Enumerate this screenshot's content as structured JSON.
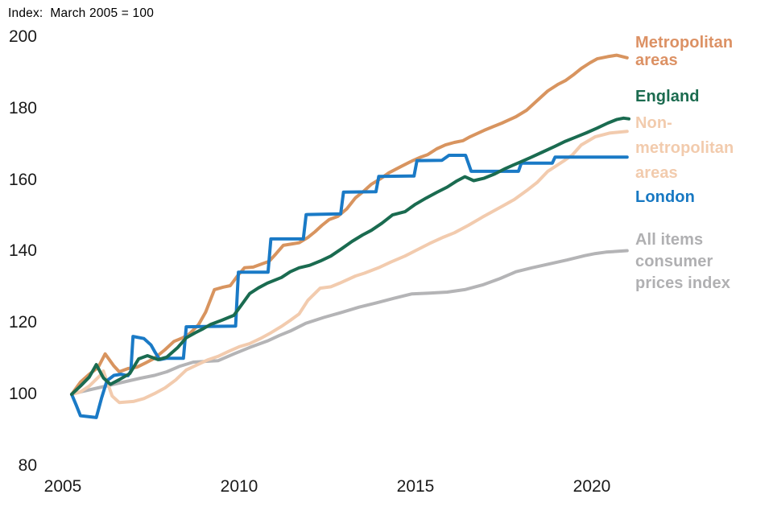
{
  "chart_data": {
    "type": "line",
    "title": "Index:  March 2005 = 100",
    "x_axis": {
      "ticks": [
        {
          "label": "2005",
          "value": 2005
        },
        {
          "label": "2010",
          "value": 2010
        },
        {
          "label": "2015",
          "value": 2015
        },
        {
          "label": "2020",
          "value": 2020
        }
      ]
    },
    "y_axis": {
      "ticks": [
        {
          "label": "200",
          "value": 200
        },
        {
          "label": "180",
          "value": 180
        },
        {
          "label": "160",
          "value": 160
        },
        {
          "label": "140",
          "value": 140
        },
        {
          "label": "120",
          "value": 120
        },
        {
          "label": "100",
          "value": 100
        },
        {
          "label": "80",
          "value": 80
        }
      ],
      "range": [
        80,
        205
      ]
    },
    "x_range": [
      2005,
      2021.5
    ],
    "grid": false,
    "legend_position": "right",
    "series": [
      {
        "name": "All items consumer prices index",
        "slug": "cpi",
        "color": "#b4b4b6",
        "label_color": "#b0b0b2",
        "legend_lines": [
          "All items",
          "consumer",
          "prices index"
        ],
        "points": [
          [
            2005.25,
            100
          ],
          [
            2005.6,
            100.9
          ],
          [
            2006.0,
            101.8
          ],
          [
            2006.4,
            102.7
          ],
          [
            2006.8,
            103.6
          ],
          [
            2007.2,
            104.5
          ],
          [
            2007.6,
            105.3
          ],
          [
            2007.95,
            106.3
          ],
          [
            2008.3,
            107.8
          ],
          [
            2008.7,
            109.0
          ],
          [
            2009.0,
            109.2
          ],
          [
            2009.4,
            109.4
          ],
          [
            2009.85,
            111.3
          ],
          [
            2010.3,
            113.1
          ],
          [
            2010.8,
            114.9
          ],
          [
            2011.15,
            116.5
          ],
          [
            2011.45,
            117.7
          ],
          [
            2011.9,
            119.9
          ],
          [
            2012.4,
            121.5
          ],
          [
            2012.9,
            122.9
          ],
          [
            2013.4,
            124.4
          ],
          [
            2013.9,
            125.6
          ],
          [
            2014.4,
            126.9
          ],
          [
            2014.9,
            128.1
          ],
          [
            2015.4,
            128.3
          ],
          [
            2015.9,
            128.6
          ],
          [
            2016.4,
            129.3
          ],
          [
            2016.9,
            130.6
          ],
          [
            2017.4,
            132.4
          ],
          [
            2017.85,
            134.3
          ],
          [
            2018.3,
            135.4
          ],
          [
            2018.8,
            136.5
          ],
          [
            2019.3,
            137.6
          ],
          [
            2019.8,
            138.8
          ],
          [
            2020.1,
            139.4
          ],
          [
            2020.4,
            139.8
          ],
          [
            2020.7,
            140.0
          ],
          [
            2021.0,
            140.2
          ]
        ]
      },
      {
        "name": "Non-metropolitan areas",
        "slug": "non-metropolitan-areas",
        "color": "#f2cbae",
        "label_color": "#f2cbad",
        "legend_lines": [
          "Non-",
          "metropolitan",
          "areas"
        ],
        "points": [
          [
            2005.25,
            100
          ],
          [
            2005.5,
            100.7
          ],
          [
            2005.75,
            102.3
          ],
          [
            2006.05,
            105.2
          ],
          [
            2006.15,
            106.5
          ],
          [
            2006.4,
            99.5
          ],
          [
            2006.6,
            97.7
          ],
          [
            2007.0,
            98.0
          ],
          [
            2007.3,
            98.8
          ],
          [
            2007.6,
            100.2
          ],
          [
            2007.9,
            101.8
          ],
          [
            2008.2,
            104.0
          ],
          [
            2008.5,
            106.8
          ],
          [
            2008.8,
            108.2
          ],
          [
            2009.1,
            109.6
          ],
          [
            2009.4,
            110.6
          ],
          [
            2009.7,
            112.0
          ],
          [
            2010.0,
            113.3
          ],
          [
            2010.3,
            114.2
          ],
          [
            2010.6,
            115.6
          ],
          [
            2010.9,
            117.2
          ],
          [
            2011.2,
            119.0
          ],
          [
            2011.45,
            120.7
          ],
          [
            2011.7,
            122.5
          ],
          [
            2011.95,
            126.3
          ],
          [
            2012.3,
            129.7
          ],
          [
            2012.6,
            130.1
          ],
          [
            2012.85,
            131.1
          ],
          [
            2013.3,
            133.1
          ],
          [
            2013.55,
            133.9
          ],
          [
            2013.95,
            135.4
          ],
          [
            2014.3,
            137.0
          ],
          [
            2014.7,
            138.7
          ],
          [
            2015.0,
            140.2
          ],
          [
            2015.4,
            142.2
          ],
          [
            2015.8,
            144.0
          ],
          [
            2016.1,
            145.2
          ],
          [
            2016.5,
            147.3
          ],
          [
            2016.9,
            149.6
          ],
          [
            2017.4,
            152.3
          ],
          [
            2017.8,
            154.5
          ],
          [
            2018.15,
            157.0
          ],
          [
            2018.45,
            159.3
          ],
          [
            2018.75,
            162.4
          ],
          [
            2019.2,
            165.3
          ],
          [
            2019.45,
            167.0
          ],
          [
            2019.7,
            169.8
          ],
          [
            2020.1,
            172.1
          ],
          [
            2020.5,
            173.1
          ],
          [
            2021.0,
            173.6
          ]
        ]
      },
      {
        "name": "Metropolitan areas",
        "slug": "metropolitan-areas",
        "color": "#d8945f",
        "label_color": "#dc9164",
        "legend_lines": [
          "Metropolitan",
          "areas"
        ],
        "points": [
          [
            2005.25,
            100
          ],
          [
            2005.5,
            103.4
          ],
          [
            2005.75,
            105.6
          ],
          [
            2006.0,
            107.5
          ],
          [
            2006.2,
            111.3
          ],
          [
            2006.45,
            107.9
          ],
          [
            2006.6,
            106.3
          ],
          [
            2006.85,
            107.2
          ],
          [
            2007.1,
            107.6
          ],
          [
            2007.35,
            108.8
          ],
          [
            2007.6,
            110.1
          ],
          [
            2007.9,
            112.5
          ],
          [
            2008.15,
            114.8
          ],
          [
            2008.4,
            115.8
          ],
          [
            2008.6,
            117.0
          ],
          [
            2008.85,
            119.5
          ],
          [
            2009.05,
            123.0
          ],
          [
            2009.3,
            129.3
          ],
          [
            2009.55,
            130.0
          ],
          [
            2009.75,
            130.4
          ],
          [
            2009.95,
            133.1
          ],
          [
            2010.15,
            135.4
          ],
          [
            2010.4,
            135.6
          ],
          [
            2010.65,
            136.5
          ],
          [
            2010.85,
            137.2
          ],
          [
            2011.05,
            139.4
          ],
          [
            2011.25,
            141.7
          ],
          [
            2011.5,
            142.1
          ],
          [
            2011.7,
            142.4
          ],
          [
            2011.95,
            143.9
          ],
          [
            2012.15,
            145.5
          ],
          [
            2012.35,
            147.3
          ],
          [
            2012.55,
            148.9
          ],
          [
            2012.8,
            149.8
          ],
          [
            2013.05,
            151.9
          ],
          [
            2013.3,
            155.0
          ],
          [
            2013.55,
            157.0
          ],
          [
            2013.75,
            158.8
          ],
          [
            2014.0,
            160.3
          ],
          [
            2014.25,
            162.0
          ],
          [
            2014.6,
            163.8
          ],
          [
            2014.9,
            165.3
          ],
          [
            2015.15,
            166.4
          ],
          [
            2015.35,
            167.1
          ],
          [
            2015.6,
            168.7
          ],
          [
            2015.85,
            169.8
          ],
          [
            2016.1,
            170.5
          ],
          [
            2016.35,
            171.0
          ],
          [
            2016.55,
            172.1
          ],
          [
            2016.95,
            173.9
          ],
          [
            2017.2,
            174.9
          ],
          [
            2017.45,
            175.9
          ],
          [
            2017.85,
            177.7
          ],
          [
            2018.15,
            179.5
          ],
          [
            2018.45,
            182.2
          ],
          [
            2018.75,
            184.9
          ],
          [
            2019.05,
            186.8
          ],
          [
            2019.25,
            187.8
          ],
          [
            2019.5,
            189.6
          ],
          [
            2019.7,
            191.2
          ],
          [
            2019.95,
            192.8
          ],
          [
            2020.15,
            193.9
          ],
          [
            2020.45,
            194.5
          ],
          [
            2020.7,
            194.9
          ],
          [
            2021.0,
            194.2
          ]
        ]
      },
      {
        "name": "London",
        "slug": "london",
        "color": "#1a7ac6",
        "label_color": "#1778c2",
        "legend_lines": [
          "London"
        ],
        "points": [
          [
            2005.25,
            100
          ],
          [
            2005.38,
            97.0
          ],
          [
            2005.5,
            94.0
          ],
          [
            2005.95,
            93.5
          ],
          [
            2006.1,
            99.0
          ],
          [
            2006.25,
            103.8
          ],
          [
            2006.45,
            105.3
          ],
          [
            2006.65,
            105.6
          ],
          [
            2006.85,
            105.2
          ],
          [
            2006.93,
            106.5
          ],
          [
            2006.99,
            116.2
          ],
          [
            2007.3,
            115.6
          ],
          [
            2007.5,
            113.8
          ],
          [
            2007.62,
            111.7
          ],
          [
            2007.75,
            109.7
          ],
          [
            2007.95,
            110.1
          ],
          [
            2008.42,
            110.1
          ],
          [
            2008.5,
            118.9
          ],
          [
            2009.9,
            119.1
          ],
          [
            2009.98,
            134.2
          ],
          [
            2010.82,
            134.2
          ],
          [
            2010.9,
            143.5
          ],
          [
            2011.82,
            143.5
          ],
          [
            2011.9,
            150.3
          ],
          [
            2012.88,
            150.5
          ],
          [
            2012.96,
            156.6
          ],
          [
            2013.88,
            156.7
          ],
          [
            2013.96,
            161.0
          ],
          [
            2014.96,
            161.1
          ],
          [
            2015.04,
            165.4
          ],
          [
            2015.75,
            165.5
          ],
          [
            2015.95,
            166.9
          ],
          [
            2016.42,
            166.9
          ],
          [
            2016.58,
            162.4
          ],
          [
            2017.92,
            162.4
          ],
          [
            2018.0,
            164.7
          ],
          [
            2018.88,
            164.7
          ],
          [
            2018.96,
            166.4
          ],
          [
            2021.0,
            166.4
          ]
        ]
      },
      {
        "name": "England",
        "slug": "england",
        "color": "#1a6b50",
        "label_color": "#1b6b4f",
        "legend_lines": [
          "England"
        ],
        "points": [
          [
            2005.25,
            100
          ],
          [
            2005.5,
            102.3
          ],
          [
            2005.75,
            104.8
          ],
          [
            2005.95,
            108.3
          ],
          [
            2006.15,
            104.6
          ],
          [
            2006.35,
            102.8
          ],
          [
            2006.6,
            104.1
          ],
          [
            2006.9,
            105.8
          ],
          [
            2007.15,
            109.9
          ],
          [
            2007.4,
            110.8
          ],
          [
            2007.7,
            109.7
          ],
          [
            2007.95,
            110.4
          ],
          [
            2008.25,
            113.0
          ],
          [
            2008.5,
            115.8
          ],
          [
            2008.75,
            117.2
          ],
          [
            2008.95,
            118.2
          ],
          [
            2009.2,
            119.6
          ],
          [
            2009.5,
            120.7
          ],
          [
            2009.85,
            122.1
          ],
          [
            2010.05,
            124.8
          ],
          [
            2010.3,
            128.2
          ],
          [
            2010.55,
            129.8
          ],
          [
            2010.8,
            131.1
          ],
          [
            2011.2,
            132.7
          ],
          [
            2011.45,
            134.3
          ],
          [
            2011.7,
            135.4
          ],
          [
            2012.0,
            136.1
          ],
          [
            2012.3,
            137.3
          ],
          [
            2012.6,
            138.7
          ],
          [
            2012.9,
            140.7
          ],
          [
            2013.2,
            142.8
          ],
          [
            2013.5,
            144.6
          ],
          [
            2013.75,
            145.9
          ],
          [
            2014.05,
            147.9
          ],
          [
            2014.35,
            150.2
          ],
          [
            2014.7,
            151.1
          ],
          [
            2015.0,
            153.2
          ],
          [
            2015.3,
            154.9
          ],
          [
            2015.6,
            156.5
          ],
          [
            2015.9,
            158.0
          ],
          [
            2016.15,
            159.6
          ],
          [
            2016.4,
            160.9
          ],
          [
            2016.65,
            159.8
          ],
          [
            2016.95,
            160.5
          ],
          [
            2017.25,
            161.7
          ],
          [
            2017.55,
            163.2
          ],
          [
            2017.95,
            164.9
          ],
          [
            2018.25,
            166.2
          ],
          [
            2018.6,
            167.8
          ],
          [
            2018.95,
            169.4
          ],
          [
            2019.25,
            170.8
          ],
          [
            2019.55,
            172.0
          ],
          [
            2019.85,
            173.2
          ],
          [
            2020.15,
            174.5
          ],
          [
            2020.45,
            175.9
          ],
          [
            2020.7,
            176.9
          ],
          [
            2020.9,
            177.3
          ],
          [
            2021.05,
            177.1
          ]
        ]
      }
    ]
  }
}
